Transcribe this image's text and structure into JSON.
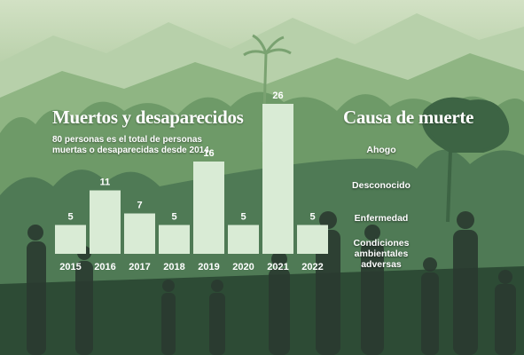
{
  "left_title": "Muertos y desaparecidos",
  "subtitle": "80 personas es el total de personas muertas o desaparecidas desde 2014.",
  "right_title": "Causa de muerte",
  "causes": [
    "Ahogo",
    "Desconocido",
    "Enfermedad",
    "Condiciones ambientales adversas"
  ],
  "colors": {
    "bar": "#d9ebd5",
    "text": "#ffffff"
  },
  "chart_data": {
    "type": "bar",
    "title": "Muertos y desaparecidos",
    "categories": [
      "2015",
      "2016",
      "2017",
      "2018",
      "2019",
      "2020",
      "2021",
      "2022"
    ],
    "values": [
      5,
      11,
      7,
      5,
      16,
      5,
      26,
      5
    ],
    "xlabel": "",
    "ylabel": "",
    "ylim": [
      0,
      26
    ],
    "grid": false,
    "legend": "none"
  }
}
